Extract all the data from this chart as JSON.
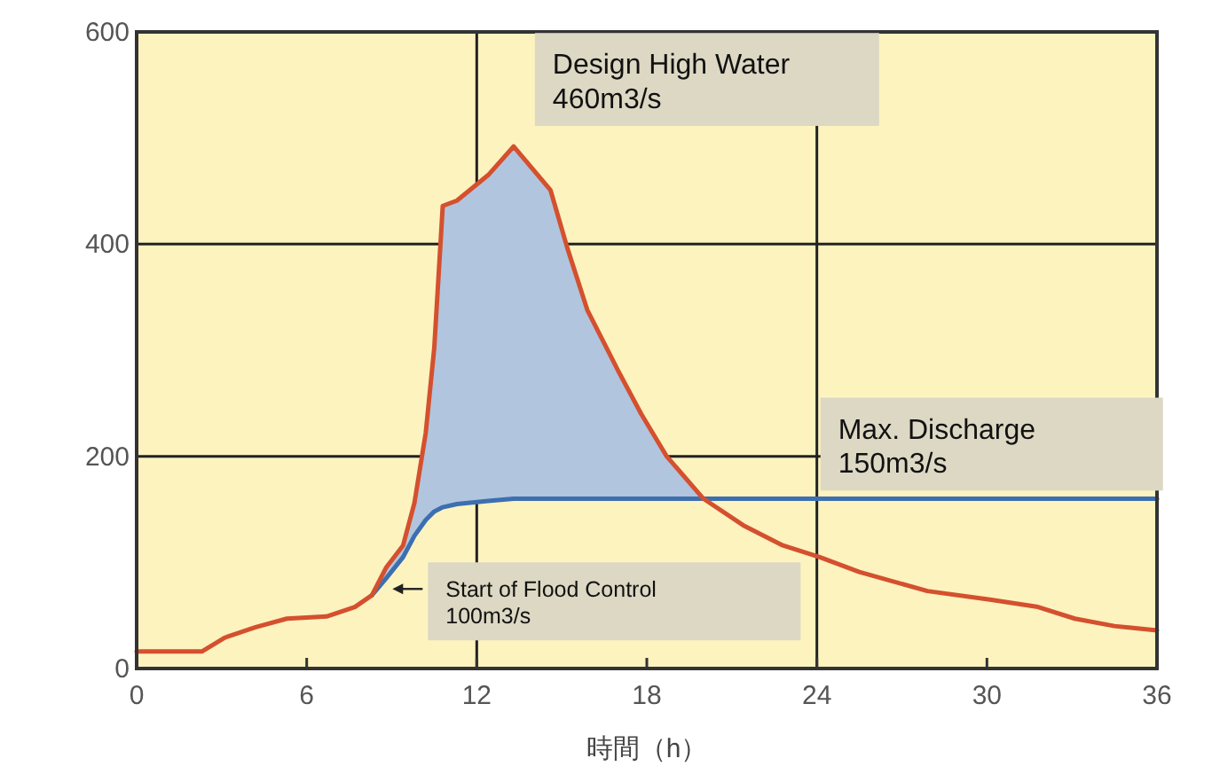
{
  "chart_data": {
    "type": "line",
    "xlabel": "時間（h）",
    "xlim": [
      0,
      36
    ],
    "xticks": [
      0,
      6,
      12,
      18,
      24,
      30,
      36
    ],
    "ylim": [
      0,
      600
    ],
    "yticks": [
      0,
      200,
      400,
      600
    ],
    "grid": "y",
    "ref_lines": [
      {
        "axis": "x",
        "value": 12,
        "color": "#222222"
      },
      {
        "axis": "x",
        "value": 24,
        "color": "#222222"
      }
    ],
    "series": [
      {
        "color": "#d4502e",
        "x": [
          0,
          2.3,
          3.1,
          4.2,
          5.3,
          6.7,
          7.7,
          8.3,
          8.8,
          9.4,
          9.8,
          10.2,
          10.5,
          10.8,
          11.3,
          12.4,
          13.3,
          14.6,
          15.2,
          15.9,
          17.0,
          17.8,
          18.7,
          20.0,
          21.4,
          22.8,
          24.1,
          25.5,
          27.9,
          30.1,
          31.8,
          33.1,
          34.5,
          36
        ],
        "values": [
          16,
          16,
          29,
          39,
          47,
          49,
          58,
          69,
          95,
          116,
          156,
          222,
          302,
          436,
          441,
          465,
          492,
          451,
          396,
          338,
          280,
          240,
          200,
          160,
          135,
          116,
          105,
          91,
          73,
          65,
          58,
          47,
          40,
          36
        ]
      },
      {
        "color": "#3d6fb0",
        "x": [
          8.3,
          8.8,
          9.4,
          9.8,
          10.2,
          10.5,
          10.8,
          11.3,
          12.4,
          13.3,
          14.6,
          15.2,
          15.9,
          17.0,
          17.8,
          18.7,
          20.0,
          36
        ],
        "values": [
          69,
          85,
          105,
          125,
          140,
          148,
          152,
          155,
          158,
          160,
          160,
          160,
          160,
          160,
          160,
          160,
          160,
          160
        ],
        "lower": [
          69,
          85,
          105,
          125,
          140,
          148,
          152,
          155,
          158,
          160,
          160,
          160,
          160,
          160,
          160,
          160,
          160,
          null
        ],
        "upper": [
          69,
          95,
          116,
          156,
          222,
          302,
          436,
          441,
          465,
          492,
          451,
          396,
          338,
          280,
          240,
          200,
          160,
          null
        ]
      }
    ],
    "annotations": [
      {
        "text": "Design High Water\n460m3/s",
        "x": 13.3,
        "y": 492
      },
      {
        "text": "Max. Discharge\n150m3/s",
        "x": 23.5,
        "y": 160
      },
      {
        "text": "Start of Flood Control\n100m3/s",
        "x": 8.9,
        "y": 75
      }
    ]
  }
}
